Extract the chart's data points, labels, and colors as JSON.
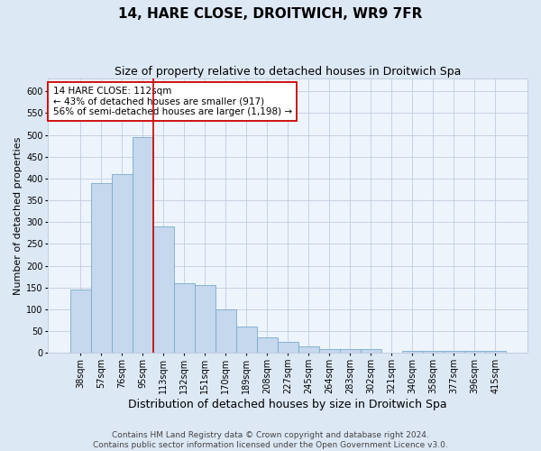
{
  "title": "14, HARE CLOSE, DROITWICH, WR9 7FR",
  "subtitle": "Size of property relative to detached houses in Droitwich Spa",
  "xlabel": "Distribution of detached houses by size in Droitwich Spa",
  "ylabel": "Number of detached properties",
  "footer_line1": "Contains HM Land Registry data © Crown copyright and database right 2024.",
  "footer_line2": "Contains public sector information licensed under the Open Government Licence v3.0.",
  "categories": [
    "38sqm",
    "57sqm",
    "76sqm",
    "95sqm",
    "113sqm",
    "132sqm",
    "151sqm",
    "170sqm",
    "189sqm",
    "208sqm",
    "227sqm",
    "245sqm",
    "264sqm",
    "283sqm",
    "302sqm",
    "321sqm",
    "340sqm",
    "358sqm",
    "377sqm",
    "396sqm",
    "415sqm"
  ],
  "values": [
    145,
    390,
    410,
    495,
    290,
    160,
    155,
    100,
    60,
    35,
    25,
    15,
    10,
    10,
    10,
    0,
    5,
    5,
    5,
    5,
    5
  ],
  "bar_color": "#c5d8ed",
  "bar_edge_color": "#7aaacb",
  "vline_index": 3,
  "vline_color": "#cc0000",
  "annotation_text": "14 HARE CLOSE: 112sqm\n← 43% of detached houses are smaller (917)\n56% of semi-detached houses are larger (1,198) →",
  "annotation_box_facecolor": "#ffffff",
  "annotation_box_edgecolor": "#cc0000",
  "ylim": [
    0,
    630
  ],
  "yticks": [
    0,
    50,
    100,
    150,
    200,
    250,
    300,
    350,
    400,
    450,
    500,
    550,
    600
  ],
  "bg_color": "#dde8f5",
  "plot_bg_color": "#eef4fc",
  "grid_color": "#c0ccdd",
  "title_fontsize": 11,
  "subtitle_fontsize": 9,
  "xlabel_fontsize": 9,
  "ylabel_fontsize": 8,
  "tick_fontsize": 7,
  "annotation_fontsize": 7.5,
  "footer_fontsize": 6.5
}
